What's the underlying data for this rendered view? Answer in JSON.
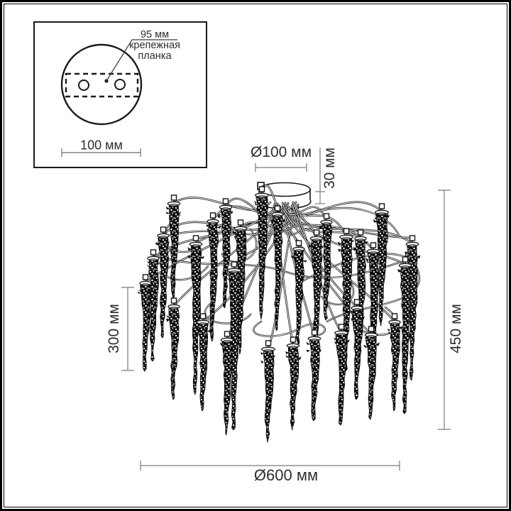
{
  "inset": {
    "plate_width_label": "95 мм",
    "plate_name_line1": "крепежная",
    "plate_name_line2": "планка",
    "base_width_label": "100 мм"
  },
  "dimensions": {
    "canopy_diameter_label": "Ø100 мм",
    "canopy_height_label": "30 мм",
    "drop_length_label": "300 мм",
    "total_height_label": "450 мм",
    "total_diameter_label": "Ø600 мм"
  },
  "colors": {
    "background": "#ffffff",
    "border": "#000000",
    "line": "#161616",
    "dimension_line": "#7a7a7a",
    "text": "#2e2e2e"
  }
}
